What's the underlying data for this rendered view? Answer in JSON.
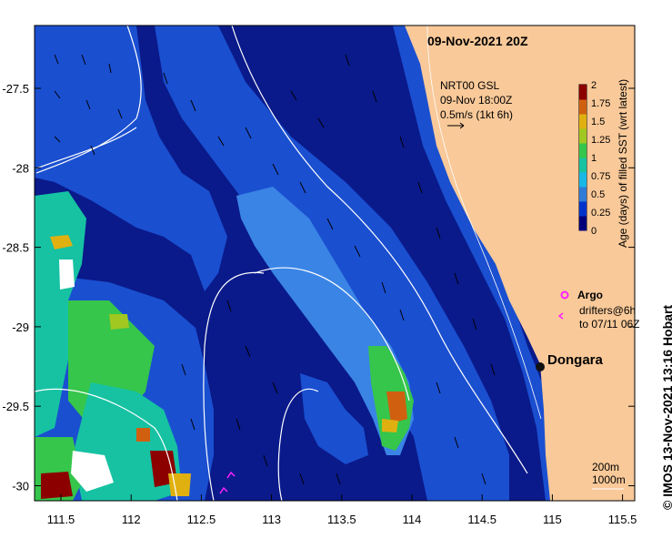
{
  "map": {
    "title": "09-Nov-2021 20Z",
    "product": "NRT00 GSL",
    "current_time": "09-Nov 18:00Z",
    "current_scale": "0.5m/s (1kt 6h)",
    "colorbar": {
      "label": "Age (days) of filled SST (wrt latest)",
      "ticks": [
        "2",
        "1.75",
        "1.5",
        "1.25",
        "1",
        "0.75",
        "0.5",
        "0.25",
        "0"
      ],
      "colors": [
        "#00007a",
        "#0033cc",
        "#2f7bd8",
        "#17b7e6",
        "#16c2a2",
        "#35c64b",
        "#a0c820",
        "#e0b010",
        "#d06010",
        "#8c0000"
      ]
    },
    "legend": {
      "argo": "Argo",
      "drifters_line1": "drifters@6h",
      "drifters_line2": "to 07/11 06Z",
      "argo_color": "#ff22ff",
      "drifter_color": "#ff22ff"
    },
    "place": "Dongara",
    "contours": {
      "c200": "200m",
      "c1000": "1000m"
    },
    "x_ticks": [
      "111.5",
      "112",
      "112.5",
      "113",
      "113.5",
      "114",
      "114.5",
      "115",
      "115.5"
    ],
    "y_ticks": [
      "-27.5",
      "-28",
      "-28.5",
      "-29",
      "-29.5",
      "-30"
    ],
    "credit": "© IMOS 13-Nov-2021 13:16 Hobart",
    "colors": {
      "deep_ocean": "#0a1a8a",
      "shelf": "#1a4fd0",
      "front": "#3a84e6",
      "land": "#f9c999",
      "coast": "#1a3fc0"
    }
  }
}
